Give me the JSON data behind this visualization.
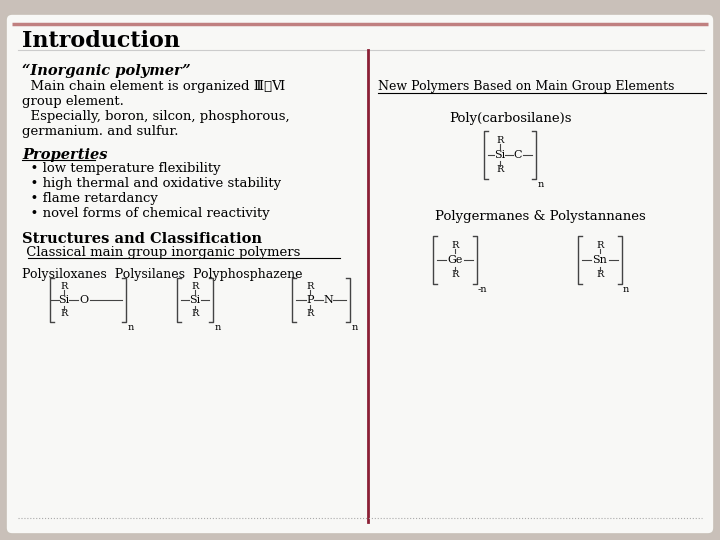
{
  "title": "Introduction",
  "bg_color": "#c9c0b9",
  "slide_bg": "#f8f8f6",
  "slide_border_color": "#c8c0b8",
  "divider_color": "#8b2035",
  "title_color": "#000000",
  "left_col": {
    "inorganic_header": "“Inorganic polymer”",
    "inorganic_body_lines": [
      "  Main chain element is organized Ⅲ～Ⅵ",
      "group element.",
      "  Especially, boron, silcon, phosphorous,",
      "germanium. and sulfur."
    ],
    "properties_header": "Properties",
    "properties_items": [
      "  • low temperature flexibility",
      "  • high thermal and oxidative stability",
      "  • flame retardancy",
      "  • novel forms of chemical reactivity"
    ],
    "structures_header": "Structures and Classification",
    "structures_sub": " Classical main group inorganic polymers",
    "polymer_types": "Polysiloxanes  Polysilanes  Polyphosphazene"
  },
  "right_col": {
    "new_polymers_title": "New Polymers Based on Main Group Elements",
    "poly1_name": "Poly(carbosilane)s",
    "poly2_name": "Polygermanes & Polystannanes"
  },
  "font_family": "DejaVu Serif"
}
